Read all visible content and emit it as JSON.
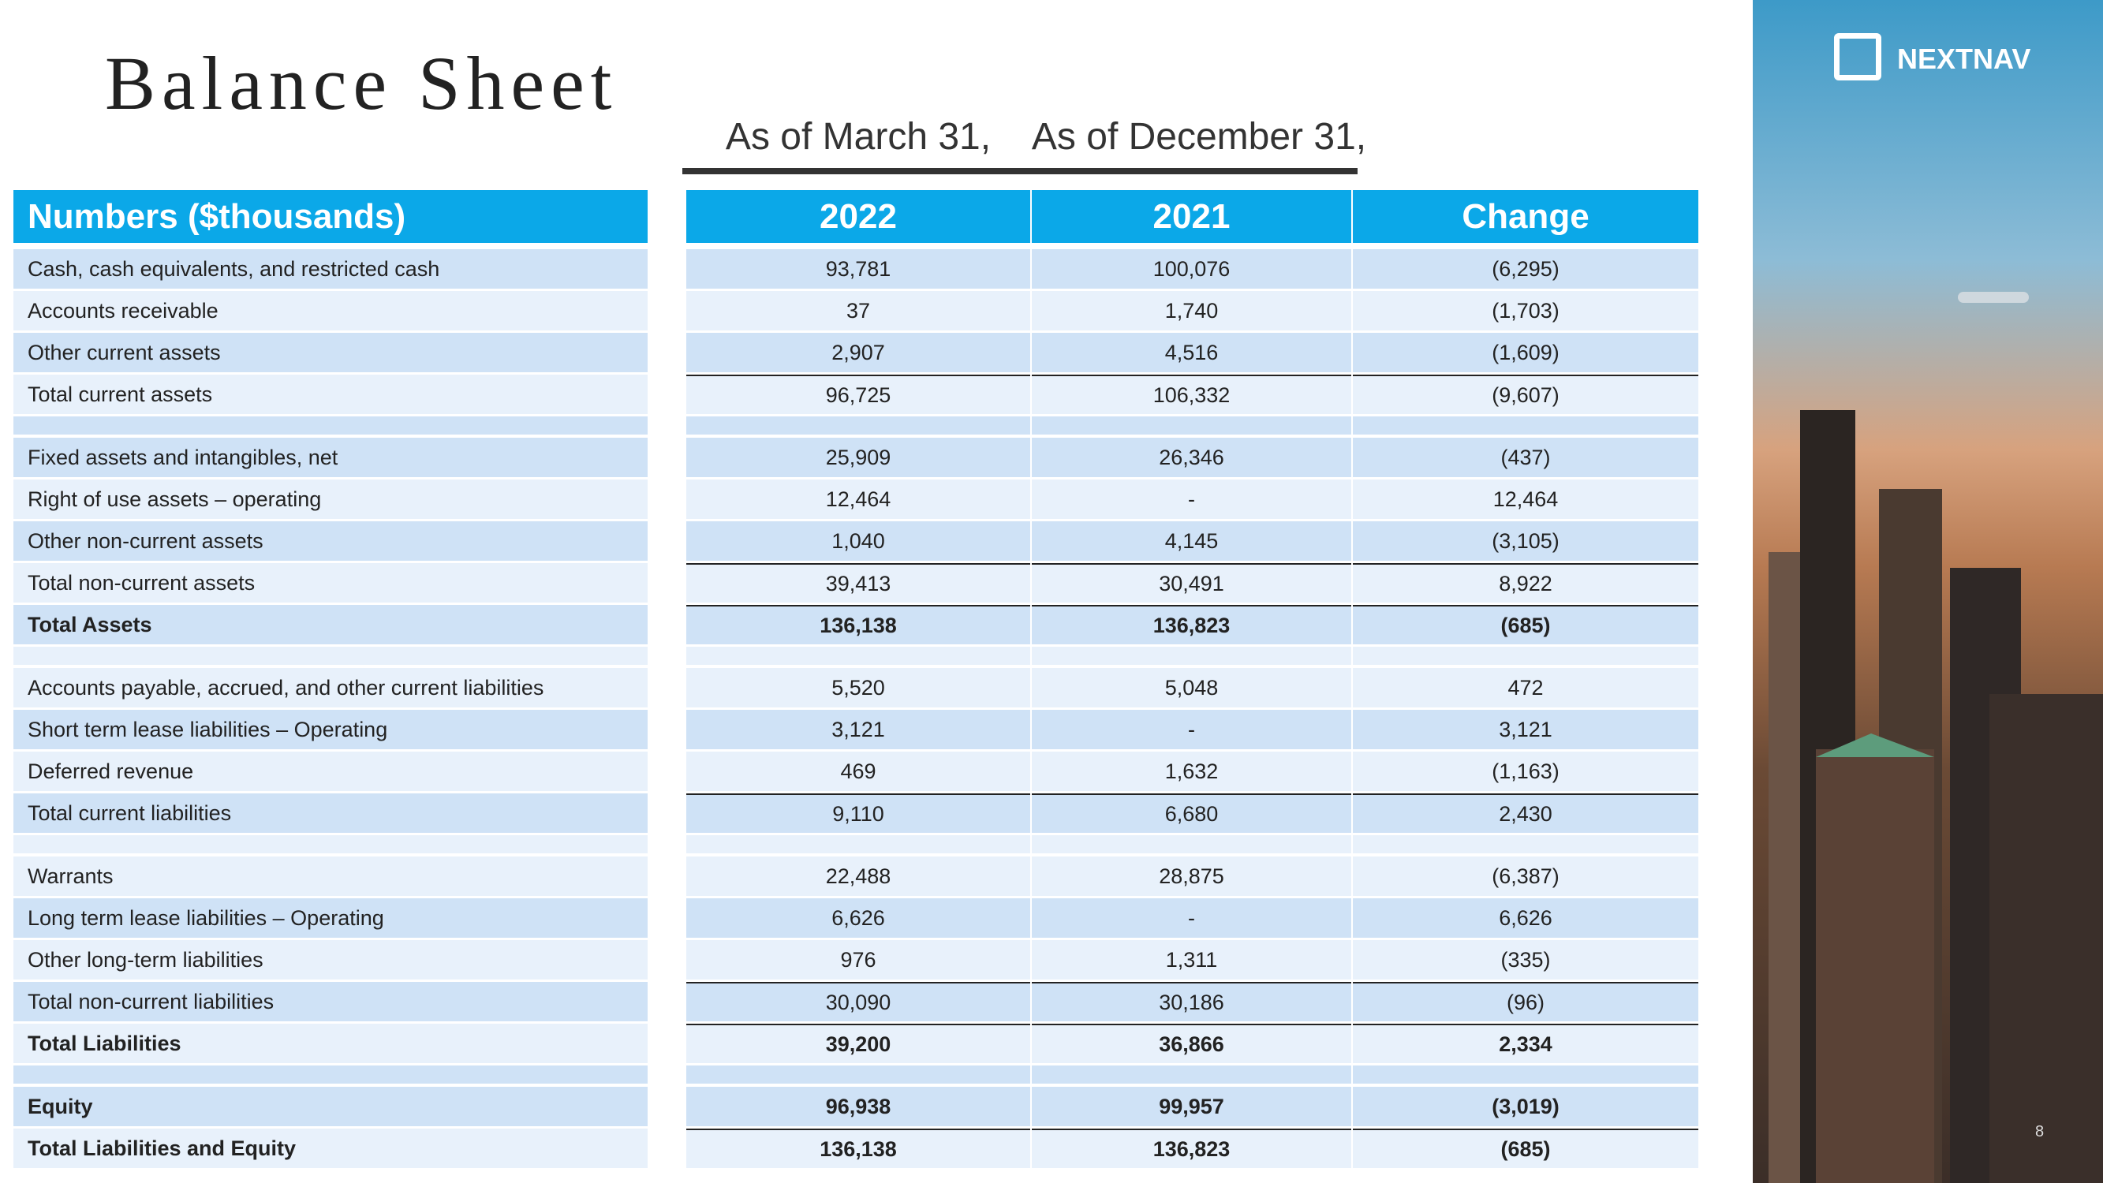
{
  "title": "Balance Sheet",
  "period_headers": [
    "As of March 31,",
    "As of December 31,"
  ],
  "table": {
    "header": [
      "Numbers ($thousands)",
      "2022",
      "2021",
      "Change"
    ],
    "sections": [
      [
        {
          "cells": [
            "Cash, cash equivalents, and restricted cash",
            "93,781",
            "100,076",
            "(6,295)"
          ]
        },
        {
          "cells": [
            "Accounts receivable",
            "37",
            "1,740",
            "(1,703)"
          ]
        },
        {
          "cells": [
            "Other current assets",
            "2,907",
            "4,516",
            "(1,609)"
          ]
        },
        {
          "cells": [
            "Total current assets",
            "96,725",
            "106,332",
            "(9,607)"
          ],
          "rule": true
        }
      ],
      [
        {
          "cells": [
            "Fixed assets and intangibles, net",
            "25,909",
            "26,346",
            "(437)"
          ]
        },
        {
          "cells": [
            "Right of use assets – operating",
            "12,464",
            "-",
            "12,464"
          ]
        },
        {
          "cells": [
            "Other non-current assets",
            "1,040",
            "4,145",
            "(3,105)"
          ]
        },
        {
          "cells": [
            "Total non-current assets",
            "39,413",
            "30,491",
            "8,922"
          ],
          "rule": true
        },
        {
          "cells": [
            "Total Assets",
            "136,138",
            "136,823",
            "(685)"
          ],
          "rule": true,
          "bold": true
        }
      ],
      [
        {
          "cells": [
            "Accounts payable, accrued, and other current liabilities",
            "5,520",
            "5,048",
            "472"
          ]
        },
        {
          "cells": [
            "Short term lease liabilities – Operating",
            "3,121",
            "-",
            "3,121"
          ]
        },
        {
          "cells": [
            "Deferred revenue",
            "469",
            "1,632",
            "(1,163)"
          ]
        },
        {
          "cells": [
            "Total current liabilities",
            "9,110",
            "6,680",
            "2,430"
          ],
          "rule": true
        }
      ],
      [
        {
          "cells": [
            "Warrants",
            "22,488",
            "28,875",
            "(6,387)"
          ]
        },
        {
          "cells": [
            "Long term lease liabilities – Operating",
            "6,626",
            "-",
            "6,626"
          ]
        },
        {
          "cells": [
            "Other long-term liabilities",
            "976",
            "1,311",
            "(335)"
          ]
        },
        {
          "cells": [
            "Total non-current liabilities",
            "30,090",
            "30,186",
            "(96)"
          ],
          "rule": true
        },
        {
          "cells": [
            "Total Liabilities",
            "39,200",
            "36,866",
            "2,334"
          ],
          "rule": true,
          "bold": true
        }
      ],
      [
        {
          "cells": [
            "Equity",
            "96,938",
            "99,957",
            "(3,019)"
          ],
          "bold": true
        },
        {
          "cells": [
            "Total Liabilities and Equity",
            "136,138",
            "136,823",
            "(685)"
          ],
          "rule": true,
          "bold": true
        }
      ]
    ]
  },
  "logo": "NEXTNAV",
  "page_number": "8"
}
